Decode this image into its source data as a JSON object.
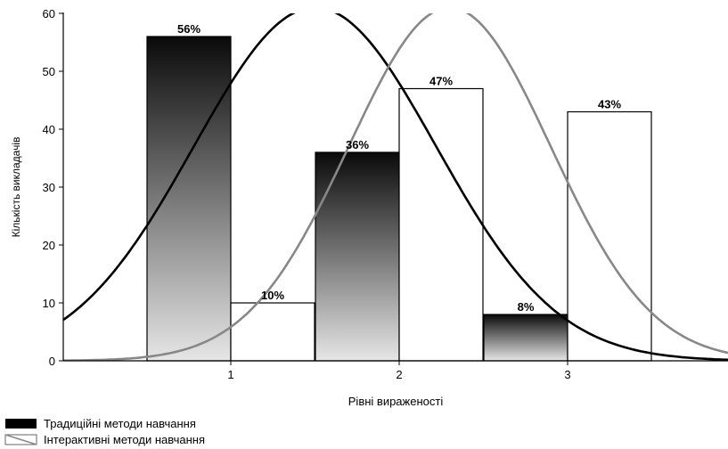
{
  "chart_data": {
    "type": "bar",
    "categories": [
      "1",
      "2",
      "3"
    ],
    "xlabel": "Рівні вираженості",
    "ylabel": "Кількість викладачів",
    "ylim": [
      0,
      60
    ],
    "yticks": [
      0,
      10,
      20,
      30,
      40,
      50,
      60
    ],
    "grid": false,
    "legend_position": "bottom-left",
    "series": [
      {
        "name": "Традиційні методи навчання",
        "values": [
          56,
          36,
          8
        ],
        "labels": [
          "56%",
          "36%",
          "8%"
        ],
        "fill": "gradient",
        "gradient_top": "#0a0a0a",
        "gradient_bottom": "#e6e6e6",
        "curve_color": "#000000",
        "curve_mean": 1.5,
        "curve_sd": 0.72,
        "curve_peak": 61
      },
      {
        "name": "Інтерактивні методи навчання",
        "values": [
          10,
          47,
          43
        ],
        "labels": [
          "10%",
          "47%",
          "43%"
        ],
        "fill": "#ffffff",
        "curve_color": "#888888",
        "curve_mean": 2.3,
        "curve_sd": 0.6,
        "curve_peak": 61
      }
    ]
  }
}
